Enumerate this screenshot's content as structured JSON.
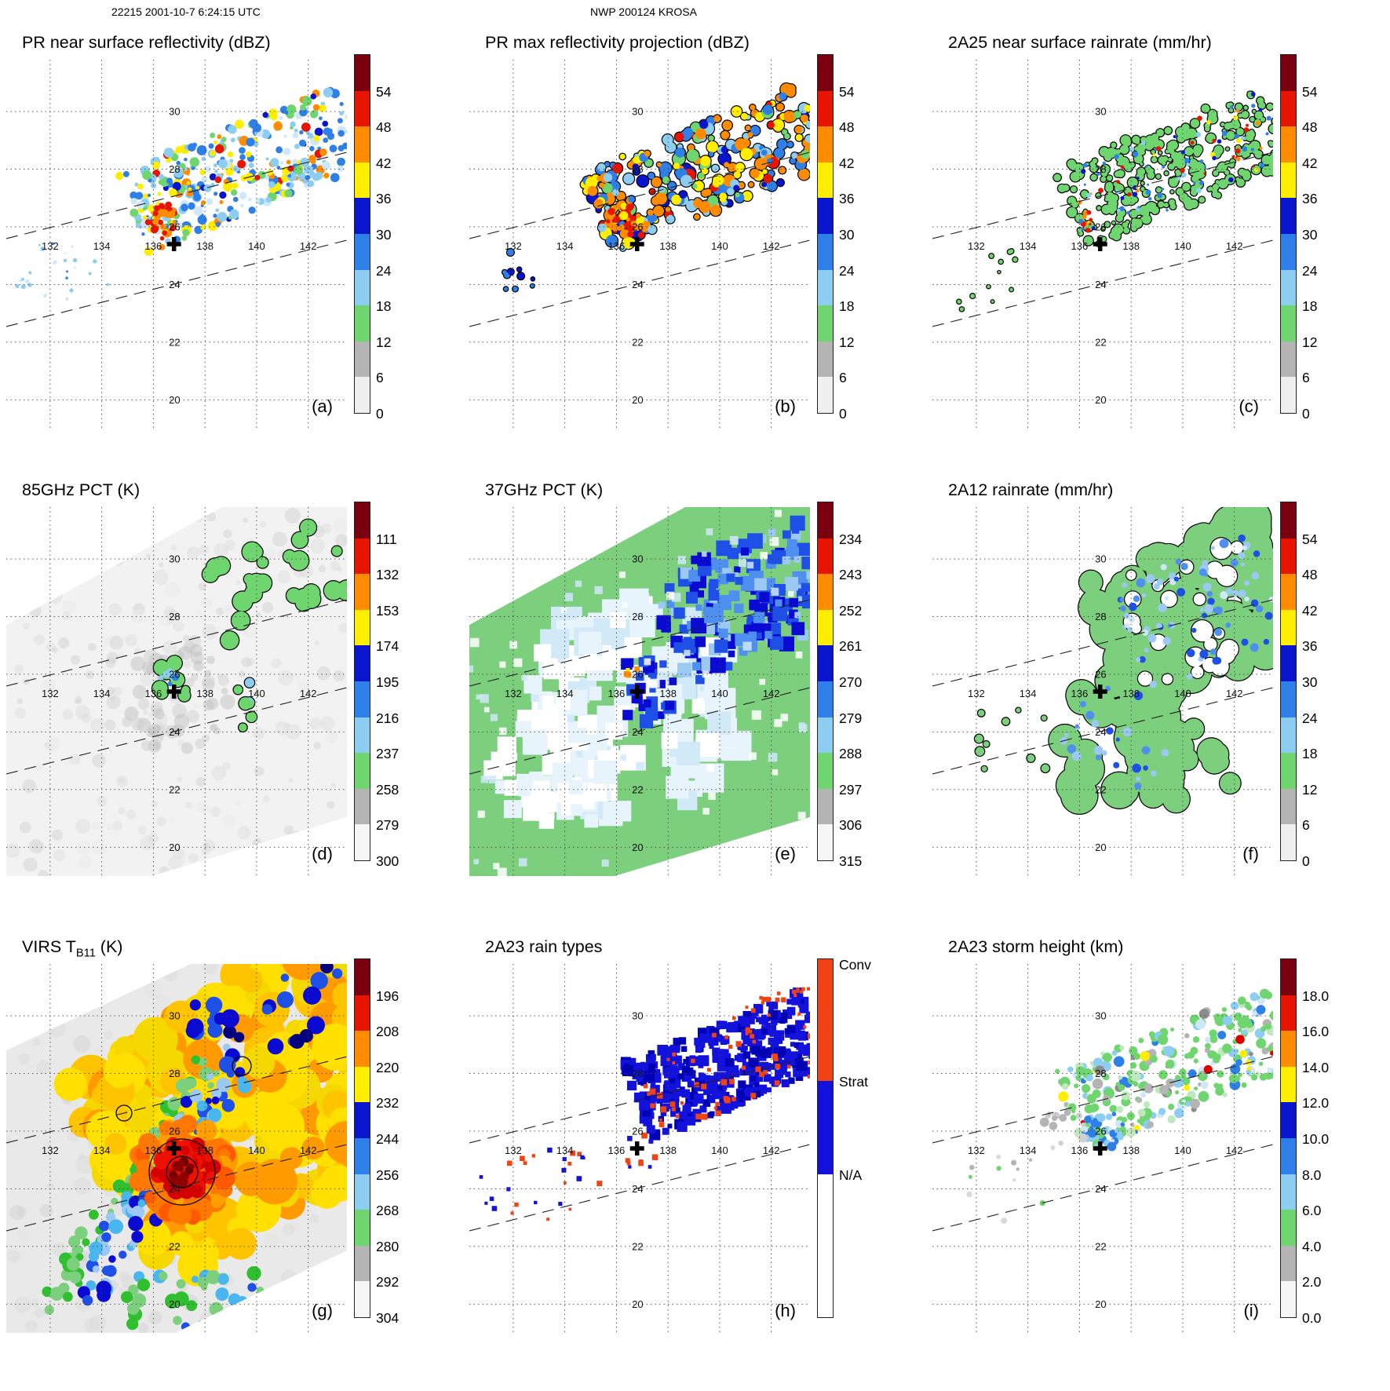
{
  "header": {
    "left": "22215 2001-10-7 6:24:15 UTC",
    "center": "NWP 200124 KROSA"
  },
  "map": {
    "lon_range": [
      130.3,
      143.5
    ],
    "lat_range": [
      19.0,
      31.8
    ],
    "lon_ticks": [
      132,
      134,
      136,
      138,
      140,
      142
    ],
    "lat_ticks": [
      20,
      22,
      24,
      26,
      28,
      30
    ],
    "storm_center": {
      "lon": 136.8,
      "lat": 25.4
    }
  },
  "panels": [
    {
      "id": "a",
      "letter": "(a)",
      "title": "PR near surface reflectivity (dBZ)",
      "units": "dBZ",
      "colorbar": {
        "ticks": [
          "54",
          "48",
          "42",
          "36",
          "30",
          "24",
          "18",
          "12",
          "6",
          "0"
        ],
        "colors": [
          "#7a0010",
          "#e61400",
          "#ff8c00",
          "#ffee00",
          "#0914cd",
          "#2f7fe8",
          "#8ecdf2",
          "#6fd66f",
          "#b4b4b4",
          "#efefef"
        ]
      }
    },
    {
      "id": "b",
      "letter": "(b)",
      "title": "PR max reflectivity projection (dBZ)",
      "units": "dBZ",
      "colorbar": {
        "ticks": [
          "54",
          "48",
          "42",
          "36",
          "30",
          "24",
          "18",
          "12",
          "6",
          "0"
        ],
        "colors": [
          "#7a0010",
          "#e61400",
          "#ff8c00",
          "#ffee00",
          "#0914cd",
          "#2f7fe8",
          "#8ecdf2",
          "#6fd66f",
          "#b4b4b4",
          "#efefef"
        ]
      }
    },
    {
      "id": "c",
      "letter": "(c)",
      "title": "2A25 near surface rainrate (mm/hr)",
      "units": "mm/hr",
      "colorbar": {
        "ticks": [
          "54",
          "48",
          "42",
          "36",
          "30",
          "24",
          "18",
          "12",
          "6",
          "0"
        ],
        "colors": [
          "#7a0010",
          "#e61400",
          "#ff8c00",
          "#ffee00",
          "#0914cd",
          "#2f7fe8",
          "#8ecdf2",
          "#6fd66f",
          "#b4b4b4",
          "#efefef"
        ]
      }
    },
    {
      "id": "d",
      "letter": "(d)",
      "title": "85GHz PCT (K)",
      "units": "K",
      "colorbar": {
        "ticks": [
          "111",
          "132",
          "153",
          "174",
          "195",
          "216",
          "237",
          "258",
          "279",
          "300"
        ],
        "colors": [
          "#7a0010",
          "#e61400",
          "#ff8c00",
          "#ffee00",
          "#0914cd",
          "#2f7fe8",
          "#8ecdf2",
          "#6fd66f",
          "#b4b4b4",
          "#f6f6f6"
        ]
      }
    },
    {
      "id": "e",
      "letter": "(e)",
      "title": "37GHz PCT (K)",
      "units": "K",
      "colorbar": {
        "ticks": [
          "234",
          "243",
          "252",
          "261",
          "270",
          "279",
          "288",
          "297",
          "306",
          "315"
        ],
        "colors": [
          "#7a0010",
          "#e61400",
          "#ff8c00",
          "#ffee00",
          "#0914cd",
          "#2f7fe8",
          "#8ecdf2",
          "#6fd66f",
          "#b4b4b4",
          "#f6f6f6"
        ]
      }
    },
    {
      "id": "f",
      "letter": "(f)",
      "title": "2A12 rainrate (mm/hr)",
      "units": "mm/hr",
      "colorbar": {
        "ticks": [
          "54",
          "48",
          "42",
          "36",
          "30",
          "24",
          "18",
          "12",
          "6",
          "0"
        ],
        "colors": [
          "#7a0010",
          "#e61400",
          "#ff8c00",
          "#ffee00",
          "#0914cd",
          "#2f7fe8",
          "#8ecdf2",
          "#6fd66f",
          "#b4b4b4",
          "#efefef"
        ]
      }
    },
    {
      "id": "g",
      "letter": "(g)",
      "title": "VIRS TB11 (K)",
      "title_pre": "VIRS T",
      "title_sub": "B11",
      "title_post": " (K)",
      "units": "K",
      "colorbar": {
        "ticks": [
          "196",
          "208",
          "220",
          "232",
          "244",
          "256",
          "268",
          "280",
          "292",
          "304"
        ],
        "colors": [
          "#7a0010",
          "#e61400",
          "#ff8c00",
          "#ffee00",
          "#0914cd",
          "#2f7fe8",
          "#8ecdf2",
          "#6fd66f",
          "#b4b4b4",
          "#f6f6f6"
        ]
      }
    },
    {
      "id": "h",
      "letter": "(h)",
      "title": "2A23 rain types",
      "colorbar": {
        "type": "categorical",
        "labels": [
          "Conv",
          "Strat",
          "N/A"
        ],
        "colors": [
          "#f04314",
          "#1212dc",
          "#ffffff"
        ],
        "bounds": [
          0,
          0.34,
          0.6,
          1
        ]
      }
    },
    {
      "id": "i",
      "letter": "(i)",
      "title": "2A23 storm height (km)",
      "units": "km",
      "colorbar": {
        "ticks": [
          "18.0",
          "16.0",
          "14.0",
          "12.0",
          "10.0",
          "8.0",
          "6.0",
          "4.0",
          "2.0",
          "0.0"
        ],
        "colors": [
          "#7a0010",
          "#e61400",
          "#ff8c00",
          "#ffee00",
          "#0914cd",
          "#2f7fe8",
          "#8ecdf2",
          "#6fd66f",
          "#b4b4b4",
          "#f6f6f6"
        ]
      }
    }
  ],
  "chart_data": {
    "type": "heatmap",
    "title_left": "22215 2001-10-7 6:24:15 UTC",
    "title_center": "NWP 200124 KROSA",
    "x": {
      "ticks": [
        132,
        134,
        136,
        138,
        140,
        142
      ],
      "range": [
        130.3,
        143.5
      ]
    },
    "y": {
      "ticks": [
        20,
        22,
        24,
        26,
        28,
        30
      ],
      "range": [
        19.0,
        31.8
      ]
    },
    "annotations": {
      "storm_center_cross": {
        "lon": 136.8,
        "lat": 25.4
      },
      "swath_edges": "dashed lines"
    },
    "panels": [
      {
        "letter": "(a)",
        "title": "PR near surface reflectivity (dBZ)",
        "units": "dBZ",
        "scale": [
          0,
          6,
          12,
          18,
          24,
          30,
          36,
          42,
          48,
          54
        ]
      },
      {
        "letter": "(b)",
        "title": "PR max reflectivity projection (dBZ)",
        "units": "dBZ",
        "scale": [
          0,
          6,
          12,
          18,
          24,
          30,
          36,
          42,
          48,
          54
        ]
      },
      {
        "letter": "(c)",
        "title": "2A25 near surface rainrate (mm/hr)",
        "units": "mm/hr",
        "scale": [
          0,
          6,
          12,
          18,
          24,
          30,
          36,
          42,
          48,
          54
        ]
      },
      {
        "letter": "(d)",
        "title": "85GHz PCT (K)",
        "units": "K",
        "scale": [
          111,
          132,
          153,
          174,
          195,
          216,
          237,
          258,
          279,
          300
        ]
      },
      {
        "letter": "(e)",
        "title": "37GHz PCT (K)",
        "units": "K",
        "scale": [
          234,
          243,
          252,
          261,
          270,
          279,
          288,
          297,
          306,
          315
        ]
      },
      {
        "letter": "(f)",
        "title": "2A12 rainrate (mm/hr)",
        "units": "mm/hr",
        "scale": [
          0,
          6,
          12,
          18,
          24,
          30,
          36,
          42,
          48,
          54
        ]
      },
      {
        "letter": "(g)",
        "title": "VIRS TB11 (K)",
        "units": "K",
        "scale": [
          196,
          208,
          220,
          232,
          244,
          256,
          268,
          280,
          292,
          304
        ]
      },
      {
        "letter": "(h)",
        "title": "2A23 rain types",
        "categories": [
          "Conv",
          "Strat",
          "N/A"
        ]
      },
      {
        "letter": "(i)",
        "title": "2A23 storm height (km)",
        "units": "km",
        "scale": [
          0,
          2,
          4,
          6,
          8,
          10,
          12,
          14,
          16,
          18
        ]
      }
    ]
  }
}
